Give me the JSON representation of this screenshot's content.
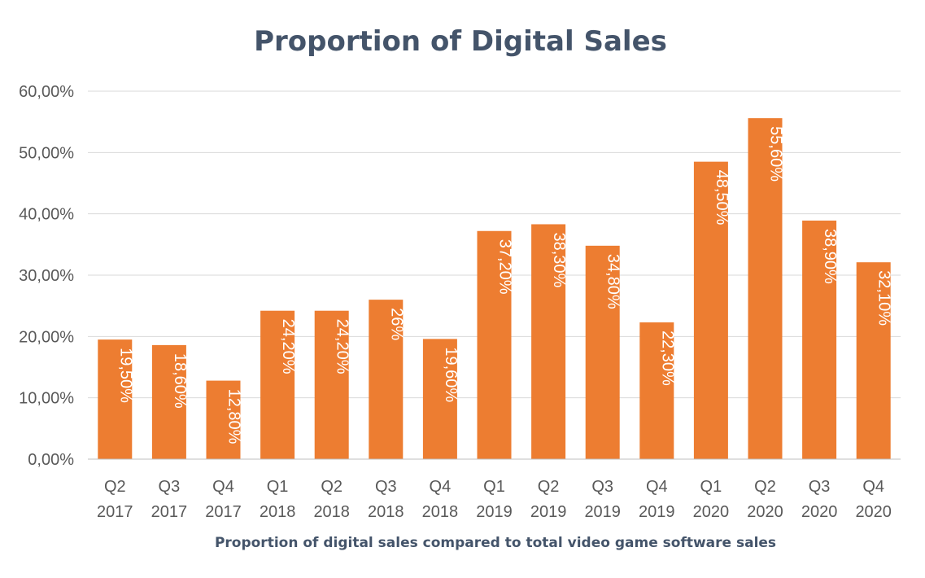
{
  "chart_data": {
    "type": "bar",
    "title": "Proportion of Digital Sales",
    "xlabel": "Proportion of digital sales compared to total video game software sales",
    "ylabel": "",
    "ylim": [
      0,
      60
    ],
    "yticks": [
      0,
      10,
      20,
      30,
      40,
      50,
      60
    ],
    "ytick_labels": [
      "0,00%",
      "10,00%",
      "20,00%",
      "30,00%",
      "40,00%",
      "50,00%",
      "60,00%"
    ],
    "grid": true,
    "bar_color": "#ed7d31",
    "categories": [
      [
        "Q2",
        "2017"
      ],
      [
        "Q3",
        "2017"
      ],
      [
        "Q4",
        "2017"
      ],
      [
        "Q1",
        "2018"
      ],
      [
        "Q2",
        "2018"
      ],
      [
        "Q3",
        "2018"
      ],
      [
        "Q4",
        "2018"
      ],
      [
        "Q1",
        "2019"
      ],
      [
        "Q2",
        "2019"
      ],
      [
        "Q3",
        "2019"
      ],
      [
        "Q4",
        "2019"
      ],
      [
        "Q1",
        "2020"
      ],
      [
        "Q2",
        "2020"
      ],
      [
        "Q3",
        "2020"
      ],
      [
        "Q4",
        "2020"
      ]
    ],
    "values": [
      19.5,
      18.6,
      12.8,
      24.2,
      24.2,
      26,
      19.6,
      37.2,
      38.3,
      34.8,
      22.3,
      48.5,
      55.6,
      38.9,
      32.1
    ],
    "data_labels": [
      "19,50%",
      "18,60%",
      "12,80%",
      "24,20%",
      "24,20%",
      "26%",
      "19,60%",
      "37,20%",
      "38,30%",
      "34,80%",
      "22,30%",
      "48,50%",
      "55,60%",
      "38,90%",
      "32,10%"
    ]
  }
}
